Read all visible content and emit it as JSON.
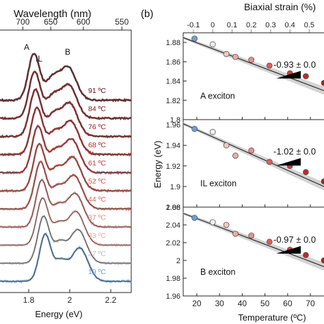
{
  "panel_label_b": "(b)",
  "chart_data": [
    {
      "type": "line",
      "name": "panel-a-spectra",
      "top_axis_label": "Wavelength (nm)",
      "top_ticks": [
        "700",
        "650",
        "600",
        "550"
      ],
      "top_tick_values_nm": [
        700,
        650,
        600,
        550
      ],
      "xlabel": "Energy (eV)",
      "xticks": [
        "1.8",
        "2",
        "2.2"
      ],
      "xtick_values": [
        1.8,
        2.0,
        2.2
      ],
      "xlim": [
        1.66,
        2.3
      ],
      "peak_labels": [
        {
          "text": "A",
          "energy": 1.79
        },
        {
          "text": "IL",
          "energy": 1.85
        },
        {
          "text": "B",
          "energy": 1.99
        }
      ],
      "temperatures": [
        {
          "label": "91 ºC",
          "color": "#5a0a0f",
          "A": 1.826,
          "IL": 1.912,
          "B": 1.99
        },
        {
          "label": "84 ºC",
          "color": "#7a0d13",
          "A": 1.829,
          "IL": 1.914,
          "B": 1.993
        },
        {
          "label": "76 ºC",
          "color": "#941318",
          "A": 1.833,
          "IL": 1.917,
          "B": 1.997
        },
        {
          "label": "68 ºC",
          "color": "#b31c21",
          "A": 1.84,
          "IL": 1.921,
          "B": 2.003
        },
        {
          "label": "61 ºC",
          "color": "#c8302f",
          "A": 1.845,
          "IL": 1.926,
          "B": 2.008
        },
        {
          "label": "52 ºC",
          "color": "#d44a44",
          "A": 1.851,
          "IL": 1.931,
          "B": 2.014
        },
        {
          "label": "44 ºC",
          "color": "#dc615b",
          "A": 1.857,
          "IL": 1.936,
          "B": 2.02
        },
        {
          "label": "37 ºC",
          "color": "#e48a84",
          "A": 1.863,
          "IL": 1.941,
          "B": 2.026
        },
        {
          "label": "33 ºC",
          "color": "#ecaaa4",
          "A": 1.867,
          "IL": 1.944,
          "B": 2.03
        },
        {
          "label": "27 ºC",
          "color": "#b8b8b8",
          "A": 1.872,
          "IL": 1.95,
          "B": 2.04
        },
        {
          "label": "19 ºC",
          "color": "#6f9fd4",
          "A": 1.88,
          "IL": 1.956,
          "B": 2.048
        }
      ]
    },
    {
      "type": "scatter",
      "name": "panel-b-exciton-energies",
      "top_axis_label": "Biaxial strain (%)",
      "top_ticks": [
        "-0.1",
        "0",
        "0.1",
        "0.2",
        "0.3",
        "0.4",
        "0.5"
      ],
      "top_tick_values": [
        -0.1,
        0,
        0.1,
        0.2,
        0.3,
        0.4,
        0.5
      ],
      "xlabel": "Temperature (ºC)",
      "xticks": [
        "20",
        "30",
        "40",
        "50",
        "60",
        "70"
      ],
      "xtick_values": [
        20,
        30,
        40,
        50,
        60,
        70
      ],
      "xlim": [
        14,
        76
      ],
      "ylabel": "Energy (eV)",
      "subplots": [
        {
          "label": "A exciton",
          "slope_text": "-0.93 ± 0.0",
          "ylim": [
            1.8,
            1.89
          ],
          "yticks": [
            "1.8",
            "1.82",
            "1.84",
            "1.86",
            "1.88"
          ],
          "ytick_values": [
            1.8,
            1.82,
            1.84,
            1.86,
            1.88
          ],
          "fit": {
            "x": [
              14,
              76
            ],
            "y": [
              1.885,
              1.83
            ]
          },
          "points": [
            {
              "x": 19,
              "y": 1.884
            },
            {
              "x": 27,
              "y": 1.878
            },
            {
              "x": 33,
              "y": 1.868
            },
            {
              "x": 37,
              "y": 1.865
            },
            {
              "x": 44,
              "y": 1.862
            },
            {
              "x": 52,
              "y": 1.856
            },
            {
              "x": 61,
              "y": 1.848
            },
            {
              "x": 68,
              "y": 1.845
            },
            {
              "x": 76,
              "y": 1.838
            }
          ]
        },
        {
          "label": "IL exciton",
          "slope_text": "-1.02 ± 0.0",
          "ylim": [
            1.88,
            1.965
          ],
          "yticks": [
            "1.88",
            "1.9",
            "1.92",
            "1.94",
            "1.96"
          ],
          "ytick_values": [
            1.88,
            1.9,
            1.92,
            1.94,
            1.96
          ],
          "fit": {
            "x": [
              14,
              76
            ],
            "y": [
              1.961,
              1.9
            ]
          },
          "points": [
            {
              "x": 19,
              "y": 1.956
            },
            {
              "x": 27,
              "y": 1.953
            },
            {
              "x": 33,
              "y": 1.94
            },
            {
              "x": 37,
              "y": 1.93
            },
            {
              "x": 44,
              "y": 1.935
            },
            {
              "x": 52,
              "y": 1.924
            },
            {
              "x": 61,
              "y": 1.92
            },
            {
              "x": 68,
              "y": 1.914
            },
            {
              "x": 76,
              "y": 1.905
            }
          ]
        },
        {
          "label": "B exciton",
          "slope_text": "-0.97 ± 0.0",
          "ylim": [
            1.96,
            2.06
          ],
          "yticks": [
            "1.96",
            "1.98",
            "2",
            "2.02",
            "2.04",
            "2.06"
          ],
          "ytick_values": [
            1.96,
            1.98,
            2.0,
            2.02,
            2.04,
            2.06
          ],
          "fit": {
            "x": [
              14,
              76
            ],
            "y": [
              2.053,
              1.993
            ]
          },
          "points": [
            {
              "x": 19,
              "y": 2.048
            },
            {
              "x": 27,
              "y": 2.043
            },
            {
              "x": 33,
              "y": 2.04
            },
            {
              "x": 37,
              "y": 2.03
            },
            {
              "x": 44,
              "y": 2.028
            },
            {
              "x": 52,
              "y": 2.021
            },
            {
              "x": 61,
              "y": 2.012
            },
            {
              "x": 68,
              "y": 2.006
            },
            {
              "x": 76,
              "y": 2.0
            }
          ]
        }
      ]
    }
  ]
}
